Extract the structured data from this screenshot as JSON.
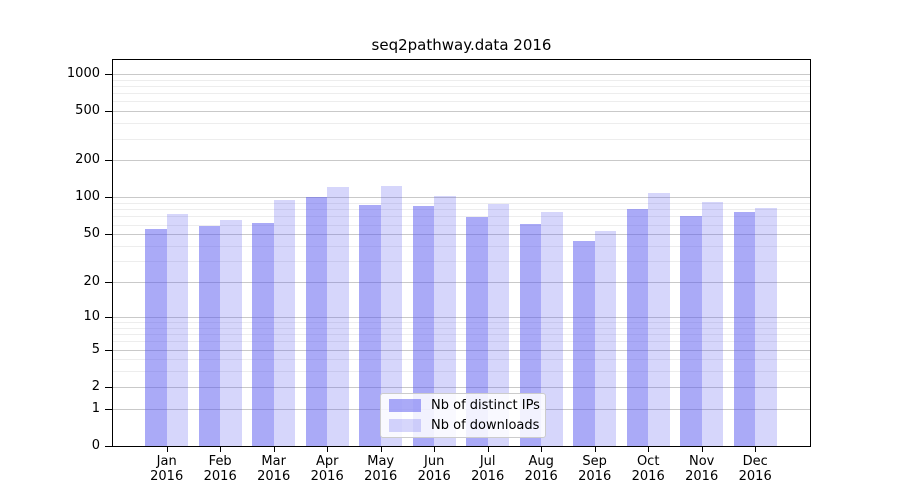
{
  "title": "seq2pathway.data 2016",
  "chart_data": {
    "type": "bar",
    "title": "seq2pathway.data 2016",
    "categories": [
      "Jan",
      "Feb",
      "Mar",
      "Apr",
      "May",
      "Jun",
      "Jul",
      "Aug",
      "Sep",
      "Oct",
      "Nov",
      "Dec"
    ],
    "year": "2016",
    "series": [
      {
        "name": "Nb of distinct IPs",
        "base_color": "#5555f0",
        "alpha": 0.5,
        "values": [
          55,
          58,
          62,
          101,
          86,
          85,
          69,
          61,
          44,
          81,
          70,
          76
        ]
      },
      {
        "name": "Nb of downloads",
        "base_color": "#5555f0",
        "alpha": 0.24,
        "values": [
          73,
          65,
          96,
          122,
          124,
          102,
          88,
          76,
          53,
          108,
          92,
          82
        ]
      }
    ],
    "xlabel": "",
    "ylabel": "",
    "yscale": "log10(value+1)",
    "y_ticks": [
      0,
      1,
      2,
      5,
      10,
      20,
      50,
      100,
      200,
      500,
      1000
    ],
    "y_minor_ticks": [
      3,
      4,
      6,
      7,
      8,
      9,
      30,
      40,
      60,
      70,
      80,
      90,
      300,
      400,
      600,
      700,
      800,
      900
    ],
    "ylim": [
      0,
      1300
    ],
    "grid": true,
    "legend_position": "bottom-center",
    "colors": {
      "axis": "#000000",
      "grid_major": "#c9c9c9",
      "grid_minor": "#ededed",
      "legend_border": "#cccccc"
    }
  }
}
